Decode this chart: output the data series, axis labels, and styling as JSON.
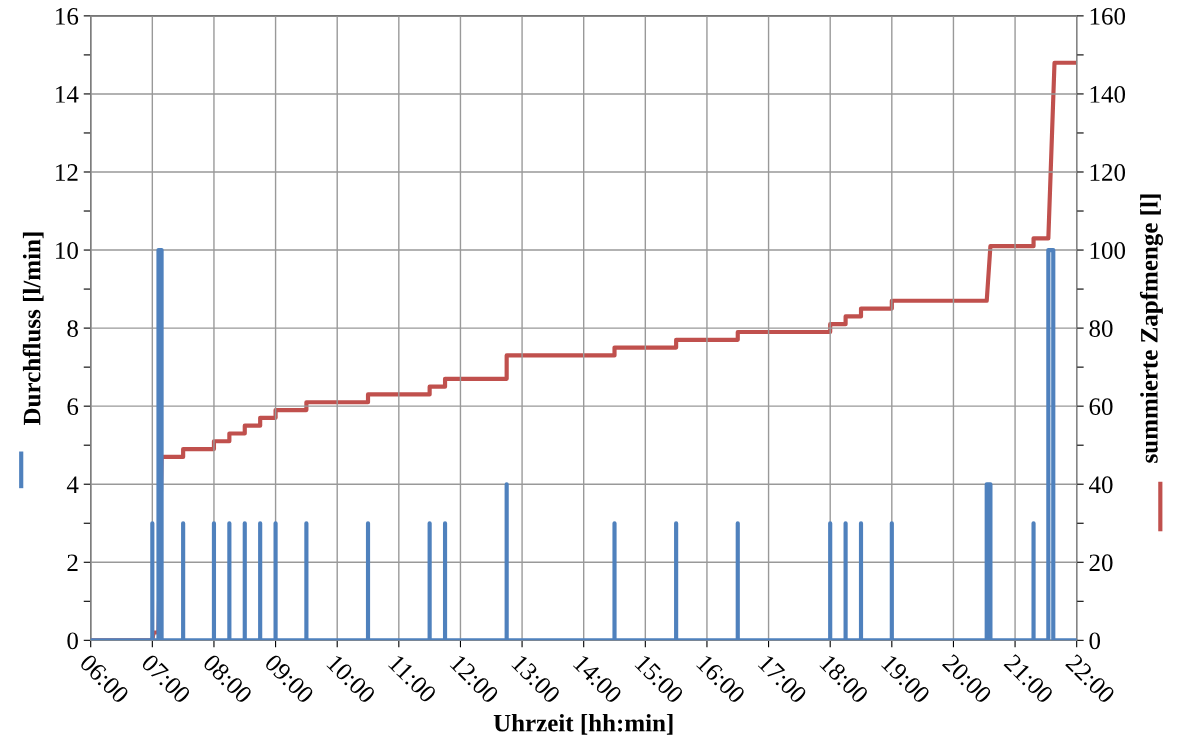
{
  "chart_data": {
    "type": "line",
    "xlabel": "Uhrzeit [hh:min]",
    "ylabel": "Durchfluss [l/min]",
    "y2label": "summierte Zapfmenge [l]",
    "xlim": [
      6,
      22
    ],
    "xticks": [
      {
        "value": 6,
        "label": "06:00"
      },
      {
        "value": 7,
        "label": "07:00"
      },
      {
        "value": 8,
        "label": "08:00"
      },
      {
        "value": 9,
        "label": "09:00"
      },
      {
        "value": 10,
        "label": "10:00"
      },
      {
        "value": 11,
        "label": "11:00"
      },
      {
        "value": 12,
        "label": "12:00"
      },
      {
        "value": 13,
        "label": "13:00"
      },
      {
        "value": 14,
        "label": "14:00"
      },
      {
        "value": 15,
        "label": "15:00"
      },
      {
        "value": 16,
        "label": "16:00"
      },
      {
        "value": 17,
        "label": "17:00"
      },
      {
        "value": 18,
        "label": "18:00"
      },
      {
        "value": 19,
        "label": "19:00"
      },
      {
        "value": 20,
        "label": "20:00"
      },
      {
        "value": 21,
        "label": "21:00"
      },
      {
        "value": 22,
        "label": "22:00"
      }
    ],
    "ylim": [
      0,
      16
    ],
    "yticks": [
      0,
      {
        "value": 1,
        "label": null
      },
      2,
      {
        "value": 3,
        "label": null
      },
      4,
      {
        "value": 5,
        "label": null
      },
      6,
      {
        "value": 7,
        "label": null
      },
      8,
      {
        "value": 9,
        "label": null
      },
      10,
      {
        "value": 11,
        "label": null
      },
      12,
      {
        "value": 13,
        "label": null
      },
      14,
      {
        "value": 15,
        "label": null
      },
      16
    ],
    "y2lim": [
      0,
      160
    ],
    "y2ticks": [
      0,
      {
        "value": 10,
        "label": null
      },
      20,
      {
        "value": 30,
        "label": null
      },
      40,
      {
        "value": 50,
        "label": null
      },
      60,
      {
        "value": 70,
        "label": null
      },
      80,
      {
        "value": 90,
        "label": null
      },
      100,
      {
        "value": 110,
        "label": null
      },
      120,
      {
        "value": 130,
        "label": null
      },
      140,
      {
        "value": 150,
        "label": null
      },
      160
    ],
    "grid": true,
    "legend": false,
    "marker": "none",
    "line_style": "solid",
    "series": [
      {
        "color": "#4f81bd",
        "x": [
          6,
          7.0,
          7.0,
          7.0,
          7.1,
          7.1,
          7.15,
          7.15,
          7.5,
          7.5,
          7.5,
          8.0,
          8.0,
          8.0,
          8.25,
          8.25,
          8.25,
          8.5,
          8.5,
          8.5,
          8.75,
          8.75,
          8.75,
          9.0,
          9.0,
          9.0,
          9.5,
          9.5,
          9.5,
          10.5,
          10.5,
          10.5,
          11.5,
          11.5,
          11.5,
          11.75,
          11.75,
          11.75,
          12.75,
          12.75,
          12.75,
          14.5,
          14.5,
          14.5,
          15.5,
          15.5,
          15.5,
          16.5,
          16.5,
          16.5,
          18.0,
          18.0,
          18.0,
          18.25,
          18.25,
          18.25,
          18.5,
          18.5,
          18.5,
          19.0,
          19.0,
          19.0,
          20.54,
          20.54,
          20.6,
          20.6,
          21.3,
          21.3,
          21.3,
          21.54,
          21.54,
          21.62,
          21.62,
          22
        ],
        "values": [
          0,
          0,
          3,
          0,
          0,
          10,
          10,
          0,
          0,
          3,
          0,
          0,
          3,
          0,
          0,
          3,
          0,
          0,
          3,
          0,
          0,
          3,
          0,
          0,
          3,
          0,
          0,
          3,
          0,
          0,
          3,
          0,
          0,
          3,
          0,
          0,
          3,
          0,
          0,
          4,
          0,
          0,
          3,
          0,
          0,
          3,
          0,
          0,
          3,
          0,
          0,
          3,
          0,
          0,
          3,
          0,
          0,
          3,
          0,
          0,
          3,
          0,
          0,
          4,
          4,
          0,
          0,
          3,
          0,
          0,
          10,
          10,
          0,
          0
        ]
      },
      {
        "color": "#c0504d",
        "axis": "y2",
        "x": [
          6,
          7.0,
          7.02,
          7.1,
          7.15,
          7.5,
          7.5,
          8.0,
          8.0,
          8.25,
          8.25,
          8.5,
          8.5,
          8.75,
          8.75,
          9.0,
          9.0,
          9.5,
          9.5,
          10.5,
          10.5,
          11.5,
          11.5,
          11.75,
          11.75,
          12.75,
          12.75,
          14.5,
          14.5,
          15.5,
          15.5,
          16.5,
          16.5,
          18.0,
          18.0,
          18.25,
          18.25,
          18.5,
          18.5,
          19.0,
          19.0,
          20.54,
          20.6,
          21.3,
          21.3,
          21.54,
          21.64,
          22
        ],
        "values": [
          0,
          0,
          2,
          2,
          47,
          47,
          49,
          49,
          51,
          51,
          53,
          53,
          55,
          55,
          57,
          57,
          59,
          59,
          61,
          61,
          63,
          63,
          65,
          65,
          67,
          67,
          73,
          73,
          75,
          75,
          77,
          77,
          79,
          79,
          81,
          81,
          83,
          83,
          85,
          85,
          87,
          87,
          101,
          101,
          103,
          103,
          148,
          148
        ]
      }
    ]
  }
}
